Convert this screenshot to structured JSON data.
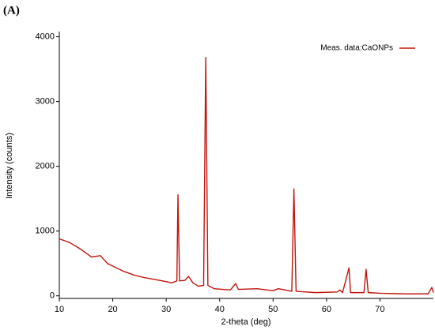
{
  "chart_data": {
    "type": "line",
    "title": "(A)",
    "xlabel": "2-theta (deg)",
    "ylabel": "Intensity (counts)",
    "x": [
      10,
      12,
      14,
      16,
      17.7,
      19,
      20,
      22,
      24,
      26,
      28,
      30,
      31,
      32,
      32.2,
      32.5,
      33.5,
      34.2,
      35,
      36,
      37,
      37.4,
      37.8,
      39,
      42,
      43,
      43.5,
      47,
      50,
      51,
      53.5,
      53.9,
      54.3,
      58,
      62,
      62.5,
      63,
      64.2,
      64.5,
      67,
      67.4,
      67.8,
      70,
      75,
      79,
      79.7,
      80
    ],
    "series": [
      {
        "name": "Meas. data:CaONPs",
        "color": "#c0140c",
        "values": [
          880,
          820,
          720,
          600,
          620,
          500,
          460,
          380,
          320,
          280,
          250,
          220,
          200,
          230,
          1560,
          230,
          240,
          300,
          200,
          150,
          160,
          3680,
          160,
          110,
          90,
          190,
          100,
          110,
          80,
          110,
          70,
          1650,
          70,
          50,
          60,
          90,
          50,
          430,
          50,
          50,
          410,
          50,
          40,
          30,
          30,
          130,
          50
        ]
      }
    ],
    "xlim": [
      10,
      80
    ],
    "ylim": [
      -40,
      4080
    ],
    "xticks": [
      10,
      20,
      30,
      40,
      50,
      60,
      70
    ],
    "yticks": [
      0,
      1000,
      2000,
      3000,
      4000
    ],
    "legend": "upper right"
  }
}
